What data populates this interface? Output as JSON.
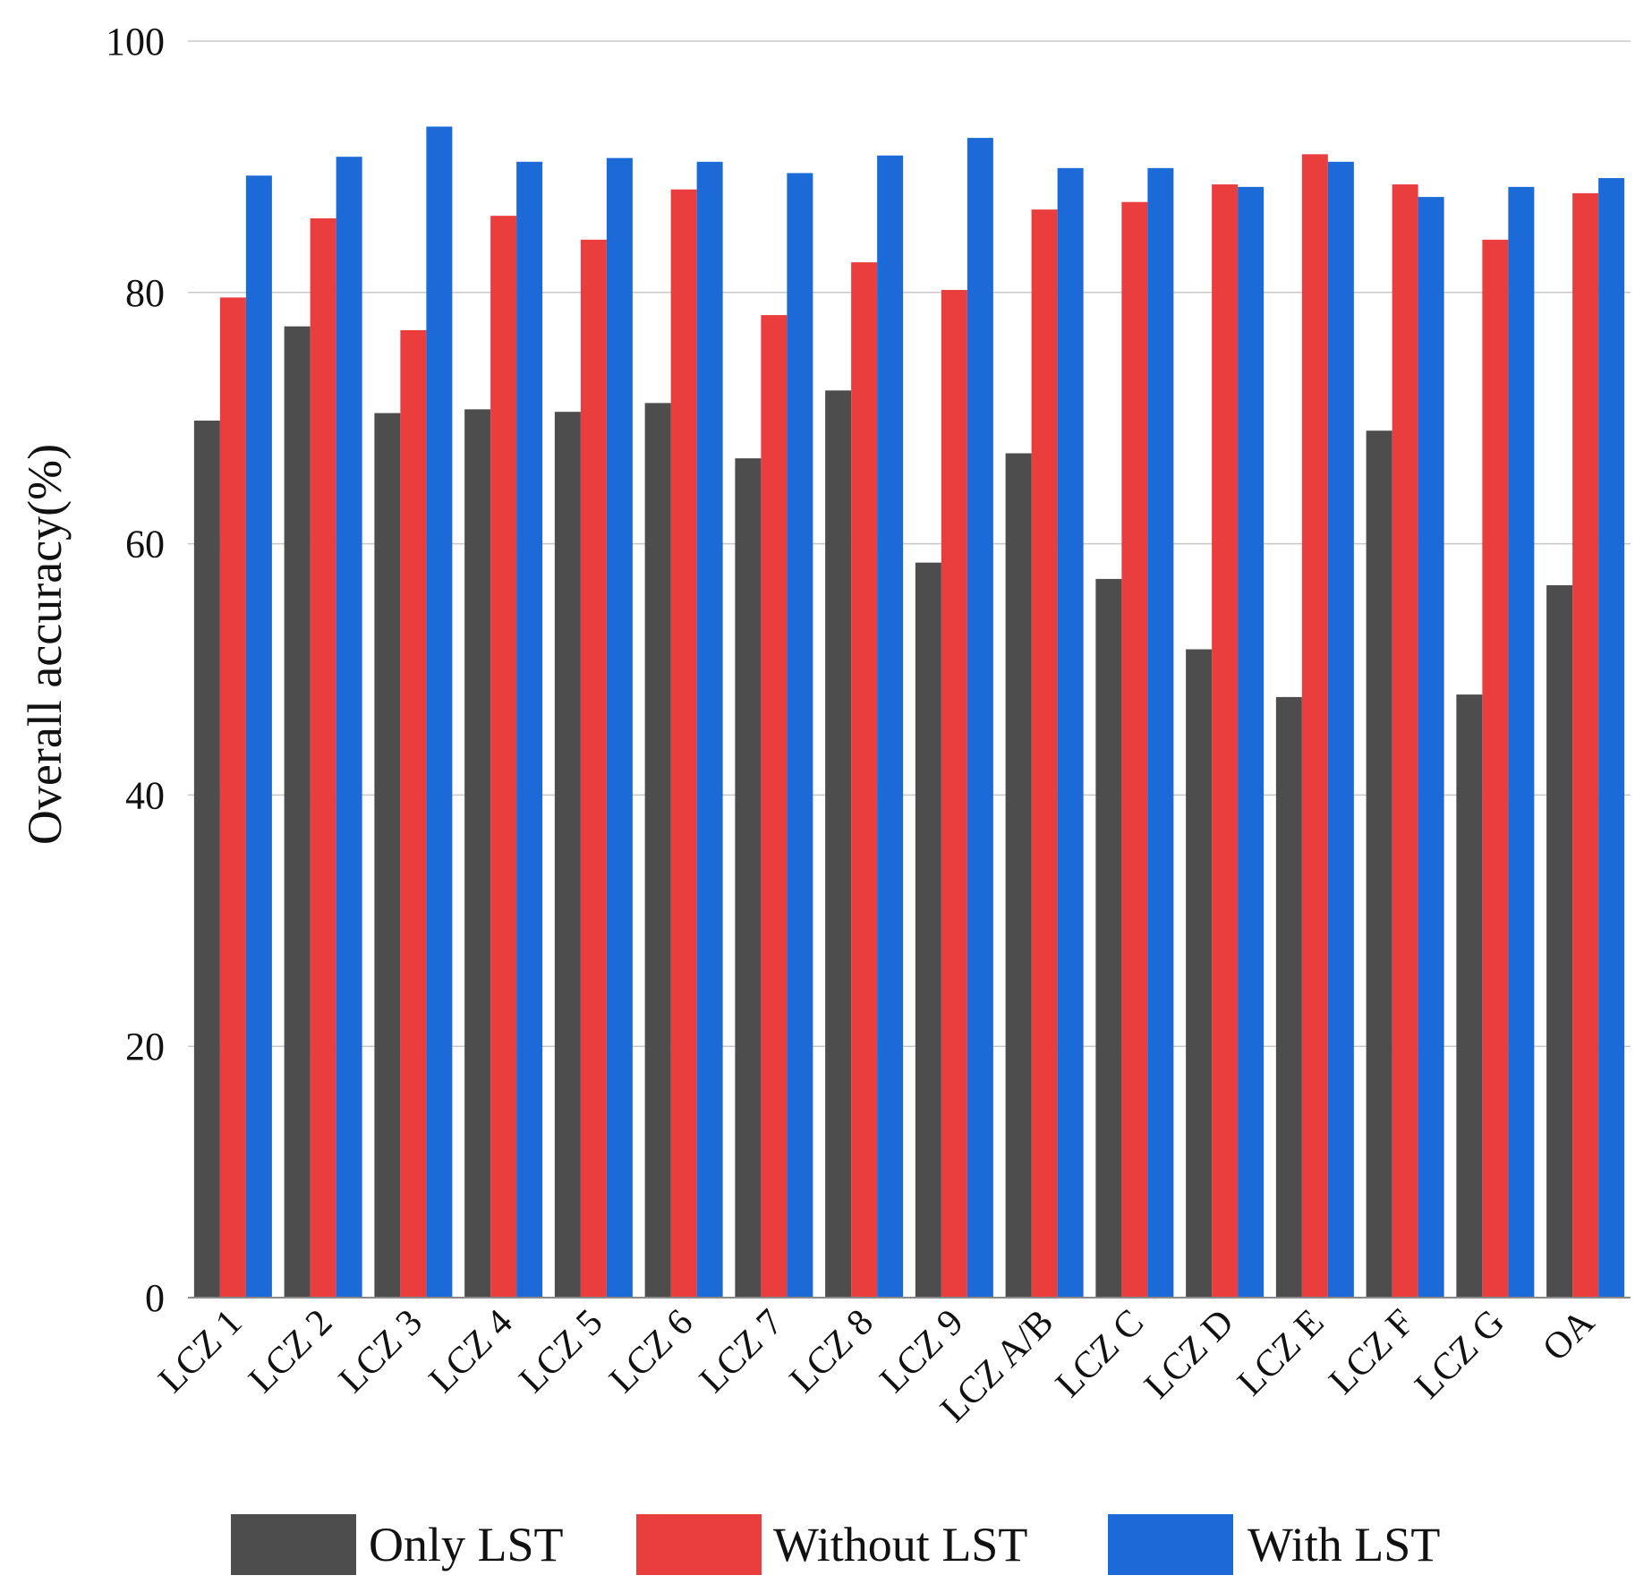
{
  "chart_data": {
    "type": "bar",
    "title": "",
    "xlabel": "",
    "ylabel": "Overall accuracy(%)",
    "ylim": [
      0,
      100
    ],
    "yticks": [
      0,
      20,
      40,
      60,
      80,
      100
    ],
    "grid": true,
    "legend_position": "bottom",
    "categories": [
      "LCZ 1",
      "LCZ 2",
      "LCZ 3",
      "LCZ 4",
      "LCZ 5",
      "LCZ 6",
      "LCZ 7",
      "LCZ 8",
      "LCZ 9",
      "LCZ A/B",
      "LCZ C",
      "LCZ D",
      "LCZ E",
      "LCZ F",
      "LCZ G",
      "OA"
    ],
    "series": [
      {
        "name": "Only LST",
        "color": "#4d4d4d",
        "values": [
          69.8,
          77.3,
          70.4,
          70.7,
          70.5,
          71.2,
          66.8,
          72.2,
          58.5,
          67.2,
          57.2,
          51.6,
          47.8,
          69.0,
          48.0,
          56.7
        ]
      },
      {
        "name": "Without LST",
        "color": "#ea3e3e",
        "values": [
          79.6,
          85.9,
          77.0,
          86.1,
          84.2,
          88.2,
          78.2,
          82.4,
          80.2,
          86.6,
          87.2,
          88.6,
          91.0,
          88.6,
          84.2,
          87.9
        ]
      },
      {
        "name": "With LST",
        "color": "#1b6ad8",
        "values": [
          89.3,
          90.8,
          93.2,
          90.4,
          90.7,
          90.4,
          89.5,
          90.9,
          92.3,
          89.9,
          89.9,
          88.4,
          90.4,
          87.6,
          88.4,
          89.1
        ]
      }
    ]
  }
}
